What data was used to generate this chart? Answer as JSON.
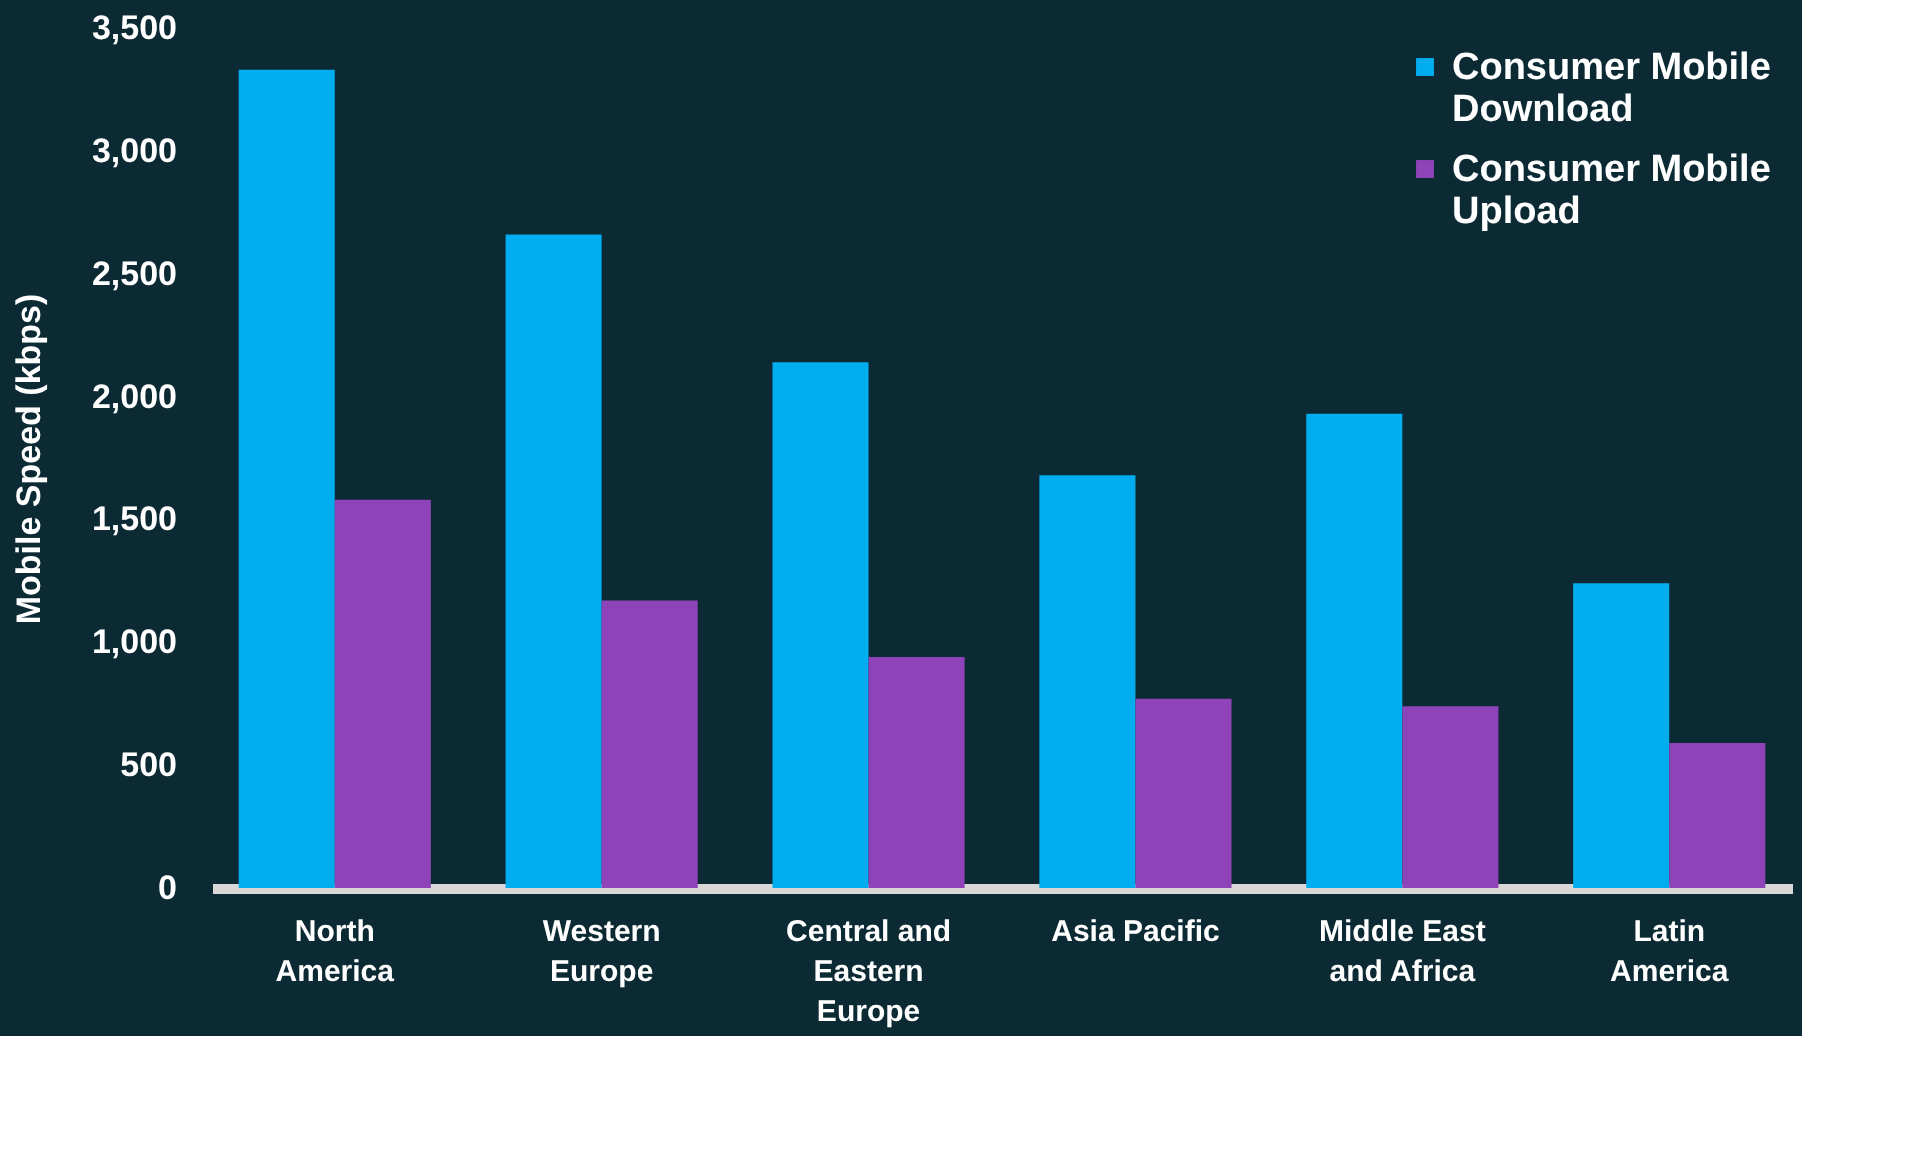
{
  "chart_data": {
    "type": "bar",
    "ylabel": "Mobile Speed (kbps)",
    "categories": [
      "North America",
      "Western Europe",
      "Central and Eastern Europe",
      "Asia Pacific",
      "Middle East and Africa",
      "Latin America"
    ],
    "series": [
      {
        "name": "Consumer Mobile Download",
        "color": "#00aeef",
        "values": [
          3330,
          2660,
          2140,
          1680,
          1930,
          1240
        ]
      },
      {
        "name": "Consumer Mobile Upload",
        "color": "#8e44b8",
        "values": [
          1580,
          1170,
          940,
          770,
          740,
          590
        ]
      }
    ],
    "ylim": [
      0,
      3500
    ],
    "yticks": [
      0,
      500,
      {
        "value": 1000,
        "label": "1,000"
      },
      {
        "value": 1500,
        "label": "1,500"
      },
      {
        "value": 2000,
        "label": "2,000"
      },
      {
        "value": 2500,
        "label": "2,500"
      },
      {
        "value": 3000,
        "label": "3,000"
      },
      {
        "value": 3500,
        "label": "3,500"
      }
    ],
    "grid": false,
    "legend": "top right"
  }
}
